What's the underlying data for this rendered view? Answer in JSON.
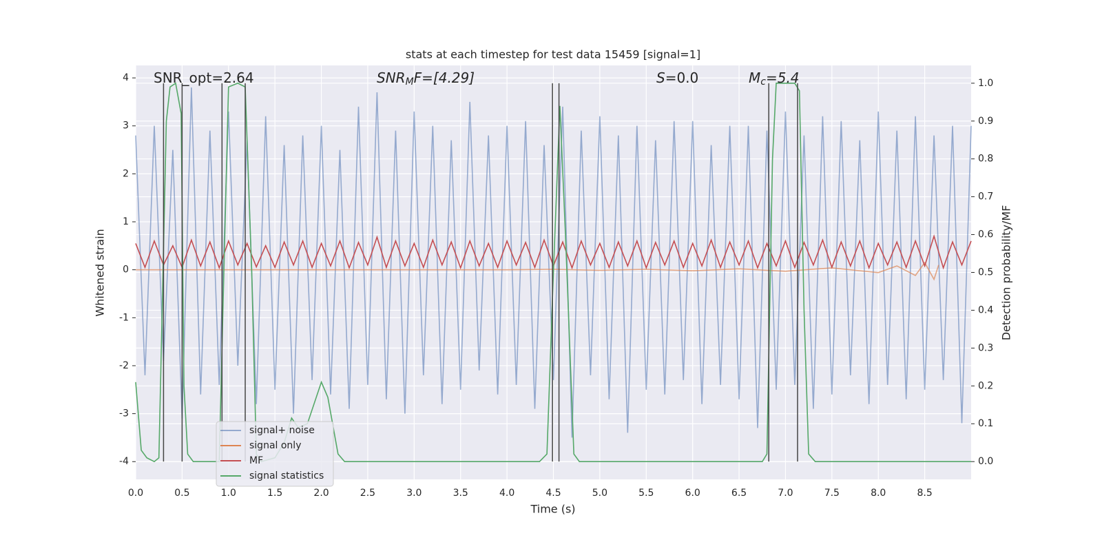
{
  "chart_data": {
    "type": "line",
    "title": "stats at each timestep for test data 15459 [signal=1]",
    "x_label": "Time (s)",
    "y_label": "Whitened strain",
    "y2_label": "Detection probability/MF",
    "annotations": [
      {
        "main": "SNR_opt=2.64"
      },
      {
        "main": "SNR",
        "sub": "M",
        "rest": "F=[4.29]"
      },
      {
        "main": "S",
        "rest": "=0.0"
      },
      {
        "main": "M",
        "sub": "c",
        "rest": "=5.4"
      }
    ],
    "xlim": [
      0,
      9.0
    ],
    "ylim": [
      -4.37,
      4.26
    ],
    "y2lim": [
      -0.047,
      1.047
    ],
    "xticks": [
      {
        "value": 0,
        "label": "0.0"
      },
      0.5,
      {
        "value": 1,
        "label": "1.0"
      },
      1.5,
      {
        "value": 2,
        "label": "2.0"
      },
      2.5,
      {
        "value": 3,
        "label": "3.0"
      },
      3.5,
      {
        "value": 4,
        "label": "4.0"
      },
      4.5,
      {
        "value": 5,
        "label": "5.0"
      },
      5.5,
      {
        "value": 6,
        "label": "6.0"
      },
      6.5,
      {
        "value": 7,
        "label": "7.0"
      },
      7.5,
      {
        "value": 8,
        "label": "8.0"
      },
      8.5
    ],
    "yticks": [
      -4,
      -3,
      -2,
      -1,
      0,
      1,
      2,
      3,
      4
    ],
    "y2ticks": [
      {
        "value": 0,
        "label": "0.0"
      },
      0.1,
      0.2,
      0.3,
      0.4,
      0.5,
      0.6,
      0.7,
      0.8,
      0.9,
      {
        "value": 1,
        "label": "1.0"
      }
    ],
    "grid": true,
    "legend_loc": "lower left",
    "x": [
      0,
      0.1,
      0.2,
      0.3,
      0.4,
      0.5,
      0.6,
      0.7,
      0.8,
      0.9,
      1.0,
      1.1,
      1.2,
      1.3,
      1.4,
      1.5,
      1.6,
      1.7,
      1.8,
      1.9,
      2.0,
      2.1,
      2.2,
      2.3,
      2.4,
      2.5,
      2.6,
      2.7,
      2.8,
      2.9,
      3.0,
      3.1,
      3.2,
      3.3,
      3.4,
      3.5,
      3.6,
      3.7,
      3.8,
      3.9,
      4.0,
      4.1,
      4.2,
      4.3,
      4.4,
      4.5,
      4.6,
      4.7,
      4.8,
      4.9,
      5.0,
      5.1,
      5.2,
      5.3,
      5.4,
      5.5,
      5.6,
      5.7,
      5.8,
      5.9,
      6.0,
      6.1,
      6.2,
      6.3,
      6.4,
      6.5,
      6.6,
      6.7,
      6.8,
      6.9,
      7.0,
      7.1,
      7.2,
      7.3,
      7.4,
      7.5,
      7.6,
      7.7,
      7.8,
      7.9,
      8.0,
      8.1,
      8.2,
      8.3,
      8.4,
      8.5,
      8.6,
      8.7,
      8.8,
      8.9,
      9.0
    ],
    "series": [
      {
        "name": "signal+ noise",
        "color": "#4c72b0",
        "values": [
          2.8,
          -2.2,
          3.0,
          -1.9,
          2.5,
          -3.1,
          3.8,
          -2.6,
          2.9,
          -2.4,
          3.3,
          -2.0,
          2.7,
          -2.8,
          3.2,
          -2.5,
          2.6,
          -3.0,
          2.8,
          -2.3,
          3.0,
          -2.6,
          2.5,
          -2.9,
          3.4,
          -2.4,
          3.7,
          -2.7,
          2.9,
          -3.0,
          3.3,
          -2.2,
          3.0,
          -2.8,
          2.7,
          -2.5,
          3.5,
          -2.1,
          2.8,
          -2.6,
          3.0,
          -2.4,
          3.1,
          -2.9,
          2.6,
          -2.3,
          3.4,
          -3.5,
          2.9,
          -2.2,
          3.2,
          -2.7,
          2.8,
          -3.4,
          3.0,
          -2.5,
          2.7,
          -2.6,
          3.1,
          -2.3,
          3.1,
          -2.8,
          2.6,
          -2.4,
          3.0,
          -2.7,
          3.0,
          -3.3,
          2.9,
          -2.5,
          3.3,
          -2.4,
          2.8,
          -2.9,
          3.2,
          -2.6,
          3.1,
          -2.2,
          2.7,
          -2.8,
          3.3,
          -2.4,
          2.9,
          -2.7,
          3.2,
          -2.5,
          2.8,
          -2.3,
          3.0,
          -3.2,
          3.0
        ]
      },
      {
        "name": "signal only",
        "color": "#dd8452",
        "x": [
          0,
          1,
          2,
          3,
          4,
          4.5,
          5,
          5.5,
          6,
          6.5,
          7,
          7.5,
          8,
          8.2,
          8.4,
          8.5,
          8.6,
          8.65
        ],
        "values": [
          0,
          0,
          0,
          0,
          0,
          0.01,
          -0.01,
          0.01,
          -0.02,
          0.02,
          -0.03,
          0.04,
          -0.06,
          0.08,
          -0.12,
          0.15,
          -0.2,
          0.1
        ]
      },
      {
        "name": "MF",
        "color": "#c44e52",
        "values": [
          0.55,
          0.05,
          0.6,
          0.1,
          0.5,
          0.05,
          0.62,
          0.08,
          0.58,
          0.04,
          0.6,
          0.1,
          0.55,
          0.06,
          0.5,
          0.05,
          0.58,
          0.1,
          0.6,
          0.05,
          0.55,
          0.08,
          0.6,
          0.04,
          0.57,
          0.1,
          0.68,
          0.05,
          0.6,
          0.08,
          0.55,
          0.05,
          0.62,
          0.1,
          0.58,
          0.04,
          0.6,
          0.08,
          0.55,
          0.05,
          0.6,
          0.1,
          0.57,
          0.05,
          0.62,
          0.08,
          0.58,
          0.04,
          0.6,
          0.1,
          0.55,
          0.05,
          0.58,
          0.08,
          0.6,
          0.04,
          0.57,
          0.1,
          0.6,
          0.05,
          0.55,
          0.08,
          0.62,
          0.05,
          0.58,
          0.1,
          0.6,
          0.04,
          0.55,
          0.08,
          0.6,
          0.05,
          0.57,
          0.1,
          0.62,
          0.05,
          0.58,
          0.08,
          0.6,
          0.04,
          0.55,
          0.1,
          0.58,
          0.05,
          0.6,
          0.08,
          0.7,
          0.04,
          0.58,
          0.1,
          0.6
        ]
      },
      {
        "name": "signal statistics",
        "color": "#55a868",
        "axis": "y2",
        "x": [
          0,
          0.06,
          0.12,
          0.2,
          0.25,
          0.33,
          0.37,
          0.43,
          0.49,
          0.52,
          0.56,
          0.62,
          0.9,
          0.95,
          1.0,
          1.1,
          1.18,
          1.25,
          1.3,
          1.35,
          1.5,
          1.6,
          1.68,
          1.75,
          1.85,
          2.0,
          2.07,
          2.18,
          2.25,
          4.35,
          4.43,
          4.5,
          4.57,
          4.63,
          4.72,
          4.78,
          6.75,
          6.8,
          6.86,
          6.9,
          7.1,
          7.15,
          7.2,
          7.25,
          7.32,
          9.0
        ],
        "values": [
          0.21,
          0.03,
          0.01,
          0.0,
          0.01,
          0.9,
          0.99,
          1.0,
          0.92,
          0.2,
          0.02,
          0.0,
          0.0,
          0.5,
          0.99,
          1.0,
          0.99,
          0.5,
          0.02,
          0.0,
          0.01,
          0.05,
          0.115,
          0.09,
          0.1,
          0.21,
          0.17,
          0.02,
          0.0,
          0.0,
          0.02,
          0.5,
          0.94,
          0.6,
          0.02,
          0.0,
          0.0,
          0.02,
          0.8,
          1.0,
          1.0,
          0.98,
          0.4,
          0.02,
          0.0,
          0.0
        ]
      }
    ],
    "vlines": [
      0.3,
      0.5,
      0.93,
      1.18,
      4.49,
      4.56,
      6.82,
      7.13
    ]
  }
}
